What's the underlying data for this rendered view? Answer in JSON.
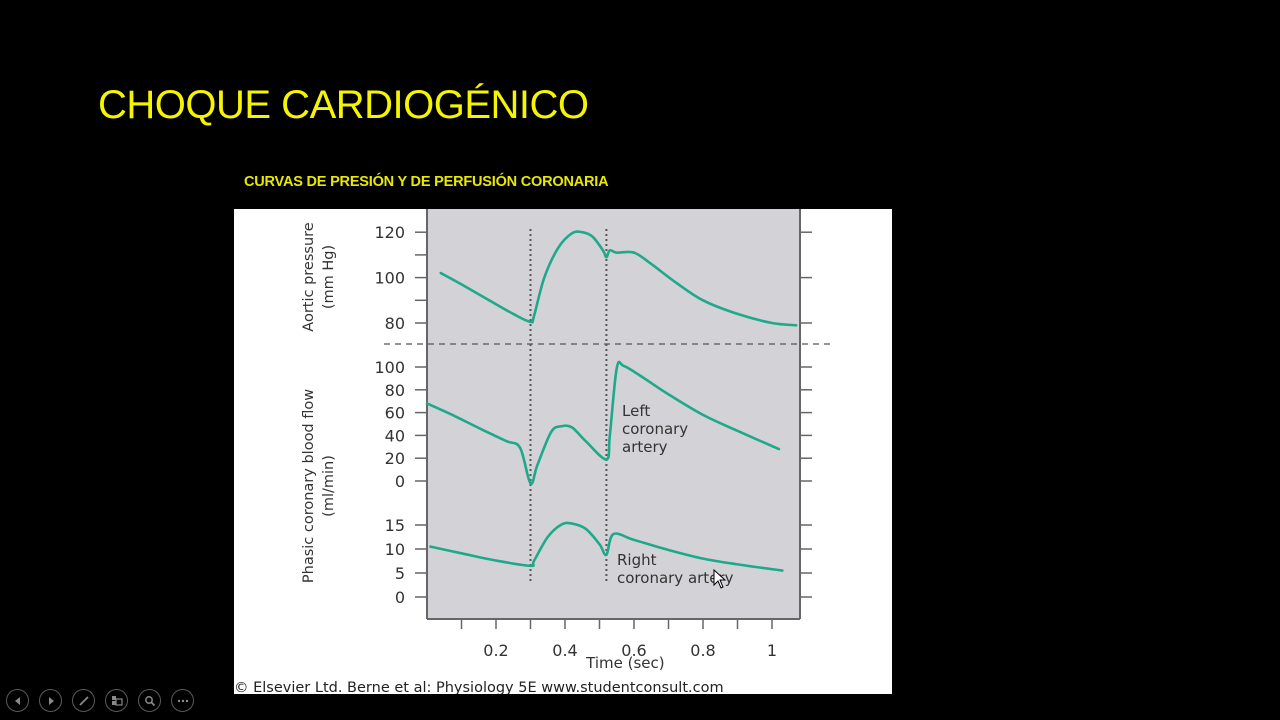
{
  "slide": {
    "title": "CHOQUE CARDIOGÉNICO",
    "subtitle": "CURVAS DE PRESIÓN Y DE PERFUSIÓN CORONARIA",
    "title_color": "#f5f500",
    "background": "#000000"
  },
  "figure": {
    "credit": "© Elsevier Ltd. Berne et al: Physiology 5E www.studentconsult.com",
    "plot_background": "#d3d3d7",
    "curve_color": "#1fa88a"
  },
  "controls": [
    {
      "name": "previous-slide",
      "icon": "triangle-left-icon"
    },
    {
      "name": "next-slide",
      "icon": "triangle-right-icon"
    },
    {
      "name": "pen-tool",
      "icon": "pen-icon"
    },
    {
      "name": "see-all-slides",
      "icon": "slides-grid-icon"
    },
    {
      "name": "zoom-into-slide",
      "icon": "magnifier-icon"
    },
    {
      "name": "more-options",
      "icon": "ellipsis-icon"
    }
  ],
  "chart_data": {
    "type": "line",
    "title": "CURVAS DE PRESIÓN Y DE PERFUSIÓN CORONARIA",
    "xlabel": "Time (sec)",
    "xlim": [
      0,
      1.08
    ],
    "x_ticks": [
      0.2,
      0.4,
      0.6,
      0.8,
      1
    ],
    "x_tick_labels": [
      "0.2",
      "0.4",
      "0.6",
      "0.8",
      "1"
    ],
    "grid": false,
    "markers": {
      "vertical_dotted_lines_x": [
        0.3,
        0.52
      ],
      "horizontal_dashed_separator": "between aortic pressure and coronary flow panels"
    },
    "panels": [
      {
        "ylabel": "Aortic pressure (mm Hg)",
        "y_ticks": [
          80,
          100,
          120
        ],
        "ylim": [
          70,
          126
        ],
        "series": [
          {
            "name": "Aortic pressure",
            "x": [
              0.04,
              0.1,
              0.18,
              0.25,
              0.3,
              0.31,
              0.34,
              0.38,
              0.42,
              0.45,
              0.48,
              0.51,
              0.52,
              0.53,
              0.55,
              0.6,
              0.65,
              0.72,
              0.8,
              0.9,
              1.0,
              1.07
            ],
            "values": [
              102,
              97,
              90,
              84,
              80.5,
              83,
              100,
              113,
              119.5,
              120,
              118,
              112,
              109,
              112,
              111,
              111,
              106,
              98,
              90,
              84,
              80,
              79
            ]
          }
        ]
      },
      {
        "ylabel": "Phasic coronary blood flow (ml/min)",
        "y_ticks": [
          0,
          20,
          40,
          60,
          80,
          100
        ],
        "ylim": [
          -5,
          105
        ],
        "series": [
          {
            "name": "Left coronary artery",
            "x": [
              0.0,
              0.08,
              0.16,
              0.23,
              0.27,
              0.3,
              0.32,
              0.36,
              0.39,
              0.42,
              0.46,
              0.52,
              0.53,
              0.55,
              0.57,
              0.62,
              0.7,
              0.8,
              0.9,
              1.02
            ],
            "values": [
              68,
              57,
              45,
              35,
              29,
              -2,
              14,
              43,
              48,
              47,
              35,
              19,
              40,
              99,
              101,
              92,
              76,
              58,
              44,
              28
            ]
          }
        ]
      },
      {
        "ylabel": "Phasic coronary blood flow (ml/min)",
        "y_ticks": [
          0,
          5,
          10,
          15
        ],
        "ylim": [
          -3,
          17
        ],
        "series": [
          {
            "name": "Right coronary artery",
            "x": [
              0.01,
              0.1,
              0.2,
              0.3,
              0.31,
              0.35,
              0.39,
              0.42,
              0.46,
              0.5,
              0.52,
              0.54,
              0.6,
              0.7,
              0.8,
              0.9,
              1.03
            ],
            "values": [
              10.5,
              9.1,
              7.6,
              6.5,
              7.5,
              12.5,
              15.1,
              15.3,
              14.2,
              11.0,
              8.8,
              13.1,
              11.9,
              9.8,
              8.0,
              6.8,
              5.5
            ]
          }
        ]
      }
    ],
    "annotations": [
      "Left coronary artery",
      "Right coronary artery"
    ],
    "source": "© Elsevier Ltd. Berne et al: Physiology 5E www.studentconsult.com"
  }
}
